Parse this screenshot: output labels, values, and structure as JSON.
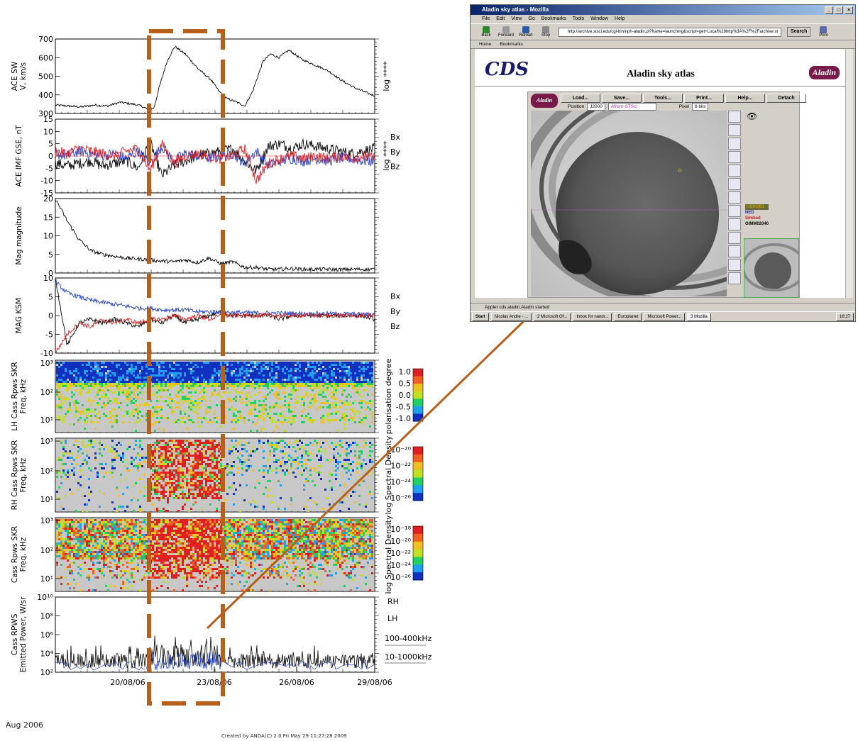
{
  "figure": {
    "footer_left": "Aug 2006",
    "footer_center": "Created by ANDA(C)  2.0 Fri May 29 11:27:28 2009"
  },
  "colors": {
    "highlight_box": "#b8601a",
    "connector_line": "#b8601a",
    "bx": "#000000",
    "by": "#2040d0",
    "bz": "#e02020",
    "spectrogram_bg": "#c8c8c8"
  },
  "chart_data": [
    {
      "type": "line",
      "panel": "ace_sw",
      "ylabel": "ACE SW\nV, km/s",
      "right_label": "log ****",
      "ylim": [
        300,
        700
      ],
      "yticks": [
        300,
        400,
        500,
        600,
        700
      ],
      "x_days": [
        0,
        0.5,
        1,
        1.5,
        2,
        2.5,
        3,
        3.3,
        3.6,
        3.8,
        4.0,
        4.3,
        4.6,
        5.0,
        5.5,
        6.0,
        6.3,
        6.6,
        7.0,
        7.3,
        7.6,
        8.0,
        8.3,
        8.6,
        9.0,
        9.5,
        10,
        10.5,
        11,
        11.5,
        12,
        12.3
      ],
      "series": [
        {
          "values": [
            345,
            340,
            335,
            345,
            340,
            360,
            350,
            340,
            320,
            330,
            440,
            580,
            660,
            620,
            540,
            480,
            420,
            380,
            360,
            340,
            420,
            580,
            620,
            600,
            640,
            590,
            560,
            530,
            480,
            440,
            410,
            395
          ]
        }
      ]
    },
    {
      "type": "line",
      "panel": "ace_imf",
      "ylabel": "ACE IMF GSE, nT",
      "right_label": "log ****",
      "ylim": [
        -15,
        15
      ],
      "yticks": [
        -15,
        -10,
        -5,
        0,
        5,
        10,
        15
      ],
      "legend": [
        "Bx",
        "By",
        "Bz"
      ],
      "series": [
        {
          "values": [
            -3,
            -4,
            -3,
            -2,
            -4,
            -3,
            -2,
            -5,
            6,
            -8,
            -4,
            -2,
            0,
            1,
            2,
            3,
            -2,
            -6,
            4,
            5,
            3,
            5,
            4,
            3,
            2,
            1,
            2,
            3
          ]
        },
        {
          "values": [
            1,
            0,
            2,
            1,
            0,
            1,
            -1,
            2,
            -3,
            4,
            -2,
            1,
            0,
            -1,
            0,
            1,
            -3,
            2,
            -4,
            -2,
            -1,
            -2,
            -1,
            -2,
            -1,
            -1,
            -2,
            -2
          ]
        },
        {
          "values": [
            2,
            1,
            3,
            2,
            1,
            0,
            2,
            3,
            -6,
            5,
            -3,
            0,
            1,
            0,
            -1,
            0,
            3,
            -10,
            -3,
            -1,
            0,
            -1,
            0,
            -1,
            0,
            -1,
            0,
            -1
          ]
        }
      ]
    },
    {
      "type": "line",
      "panel": "mag_magnitude",
      "ylabel": "Mag magnitude",
      "ylim": [
        0,
        20
      ],
      "yticks": [
        0,
        5,
        10,
        15,
        20
      ],
      "series": [
        {
          "values": [
            20,
            14,
            9,
            6,
            5,
            4.5,
            4,
            3.8,
            3.5,
            3.2,
            3,
            3.5,
            2.8,
            4,
            2.5,
            3,
            1.5,
            1.5,
            1,
            1,
            1.2,
            1,
            1,
            1,
            0.9,
            1,
            1,
            1
          ]
        }
      ]
    },
    {
      "type": "line",
      "panel": "mag_ksm",
      "ylabel": "MAG KSM",
      "ylim": [
        -10,
        10
      ],
      "yticks": [
        -10,
        -5,
        0,
        5,
        10
      ],
      "legend": [
        "Bx",
        "By",
        "Bz"
      ],
      "series": [
        {
          "values": [
            10,
            -8,
            -2,
            -1,
            -2,
            -1,
            -2,
            -3,
            -1,
            -2,
            0,
            -2,
            -1,
            0,
            1,
            0,
            0,
            0,
            0,
            -1,
            0,
            0,
            0,
            0,
            0,
            0,
            0,
            -1
          ]
        },
        {
          "values": [
            9,
            6,
            5,
            4,
            3.5,
            3,
            2.5,
            2,
            2,
            1.5,
            1.5,
            1.5,
            1,
            1,
            1,
            0.8,
            0.8,
            0.7,
            0.7,
            0.6,
            0.6,
            0.5,
            0.5,
            0.5,
            0.4,
            0.4,
            0.3,
            0.3
          ]
        },
        {
          "values": [
            -10,
            -5,
            -2,
            -3,
            -1,
            -2,
            -1,
            -2,
            -1,
            -1,
            0,
            -1,
            0,
            -1,
            0,
            0,
            0,
            0,
            0,
            0,
            0,
            0,
            0,
            0,
            0,
            0,
            0,
            0
          ]
        }
      ]
    },
    {
      "type": "heatmap",
      "panel": "lh_polarisation",
      "ylabel": "LH Cass Rpws SKR\nFreq, kHz",
      "colorbar_label": "polarisation degree",
      "colorbar_ticks": [
        "1.0",
        "0.5",
        "0.0",
        "-0.5",
        "-1.0"
      ],
      "ylim": [
        5,
        1000
      ],
      "yticks": [
        "10¹",
        "10²",
        "10³"
      ]
    },
    {
      "type": "heatmap",
      "panel": "rh_spectral",
      "ylabel": "RH Cass Rpws SKR\nFreq, kHz",
      "colorbar_label": "log Spectral Density",
      "colorbar_ticks": [
        "10⁻²⁰",
        "10⁻²²",
        "10⁻²⁴",
        "10⁻²⁶"
      ],
      "ylim": [
        5,
        1000
      ],
      "yticks": [
        "10¹",
        "10²",
        "10³"
      ]
    },
    {
      "type": "heatmap",
      "panel": "cass_spectral",
      "ylabel": "Cass Rpws SKR\nFreq, kHz",
      "colorbar_label": "log Spectral Density",
      "colorbar_ticks": [
        "10⁻¹⁸",
        "10⁻²⁰",
        "10⁻²²",
        "10⁻²⁴",
        "10⁻²⁶"
      ],
      "ylim": [
        5,
        1000
      ],
      "yticks": [
        "10¹",
        "10²",
        "10³"
      ]
    },
    {
      "type": "line",
      "panel": "emitted_power",
      "ylabel": "Cass RPWS\nEmitted Power, W/sr",
      "yscale": "log",
      "ylim": [
        100,
        10000000000.0
      ],
      "yticks": [
        "10²",
        "10⁴",
        "10⁶",
        "10⁸",
        "10¹⁰"
      ],
      "legend": [
        "RH",
        "LH"
      ],
      "annotations": [
        "100-400kHz",
        "10-1000kHz"
      ],
      "xticks": [
        "20/08/06",
        "23/08/06",
        "26/08/06",
        "29/08/06"
      ]
    }
  ],
  "browser": {
    "window_title": "Aladin sky atlas - Mozilla",
    "menu": [
      "File",
      "Edit",
      "View",
      "Go",
      "Bookmarks",
      "Tools",
      "Window",
      "Help"
    ],
    "toolbar": [
      "Back",
      "Forward",
      "Reload",
      "Stop"
    ],
    "url": "http://archive.stsci.edu/cgi-bin/nph-aladin.pl?frame=launching&script=get+Local%28http%3A%2F%2Farchive.st",
    "search_label": "Search",
    "print_label": "Print",
    "bookmarks": [
      "Home",
      "Bookmarks"
    ],
    "page_title": "Aladin sky atlas",
    "cds_logo": "CDS",
    "aladin_logo": "Aladin",
    "applet_buttons": [
      "Load...",
      "Save...",
      "Tools...",
      "Print...",
      "Help...",
      "Detach"
    ],
    "position_label": "Position",
    "frame_value": "J2000",
    "server_value": "Afrom-STScI",
    "pixel_label": "Pixel",
    "pixel_value": "8 bits",
    "planes": [
      "USNOB1",
      "NED",
      "Simbad",
      "OIMM02040"
    ],
    "status_text": "Applet cds.aladin.Aladin started",
    "taskbar": [
      "Start",
      "Nicolas Andre - ...",
      "2 Microsoft Of...",
      "Inbox for nandr...",
      "Europlanet",
      "Microsoft Power...",
      "3 Mozilla"
    ],
    "clock": "16:27"
  }
}
